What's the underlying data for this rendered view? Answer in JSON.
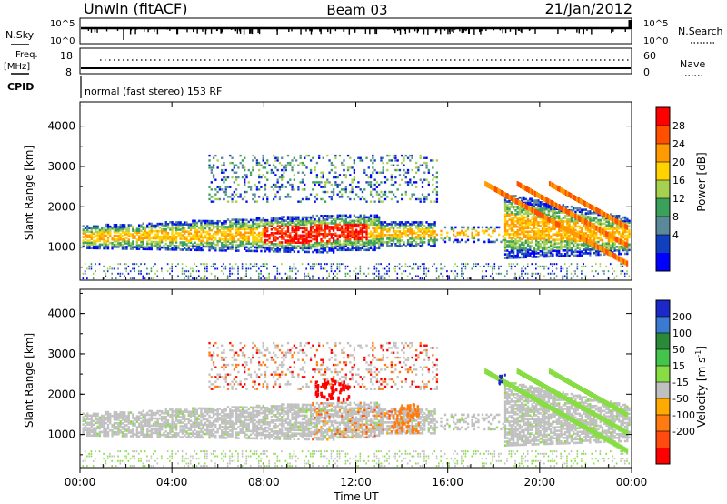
{
  "header": {
    "station": "Unwin (fitACF)",
    "beam": "Beam 03",
    "date": "21/Jan/2012"
  },
  "status_panels": {
    "nsky_label": "N.Sky",
    "nsky_ticks": [
      "10^5",
      "10^0"
    ],
    "nsearch_label": "N.Search",
    "nsearch_ticks": [
      "10^5",
      "10^0"
    ],
    "freq_label": "Freq.",
    "freq_unit": "[MHz]",
    "freq_ticks": [
      "18",
      "8"
    ],
    "nave_label": "Nave",
    "nave_ticks": [
      "60",
      "0"
    ],
    "cpid_label": "CPID",
    "cpid_text": "normal (fast stereo) 153 RF"
  },
  "chart_data": [
    {
      "type": "heatmap",
      "title": "",
      "xlabel": "Time UT",
      "ylabel": "Slant Range [km]",
      "x_ticks": [
        "00:00",
        "04:00",
        "08:00",
        "12:00",
        "16:00",
        "20:00",
        "00:00"
      ],
      "y_ticks": [
        1000,
        2000,
        3000,
        4000
      ],
      "ylim": [
        180,
        4600
      ],
      "colorbar": {
        "label": "Power [dB]",
        "ticks": [
          "28",
          "24",
          "20",
          "16",
          "12",
          "8",
          "4"
        ],
        "colors": [
          "#ff0000",
          "#ff5000",
          "#ff9a00",
          "#ffd200",
          "#a8d050",
          "#3aa05a",
          "#5a8a9a",
          "#1040c0",
          "#0000ff"
        ]
      }
    },
    {
      "type": "heatmap",
      "title": "",
      "xlabel": "Time UT",
      "ylabel": "Slant Range [km]",
      "x_ticks": [
        "00:00",
        "04:00",
        "08:00",
        "12:00",
        "16:00",
        "20:00",
        "00:00"
      ],
      "y_ticks": [
        1000,
        2000,
        3000,
        4000
      ],
      "ylim": [
        180,
        4600
      ],
      "colorbar": {
        "label": "Velocity [m s^-1]",
        "ticks": [
          "200",
          "100",
          "50",
          "15",
          "-15",
          "-50",
          "-100",
          "-200"
        ],
        "colors": [
          "#1c28c8",
          "#3a7ad0",
          "#2a8a3a",
          "#44c44c",
          "#88dd44",
          "#c0c0c0",
          "#ffaa00",
          "#ff7a10",
          "#ff4a10",
          "#ff0000"
        ]
      }
    }
  ],
  "colors": {
    "ground_scatter": "#c0c0c0",
    "background": "#ffffff"
  }
}
